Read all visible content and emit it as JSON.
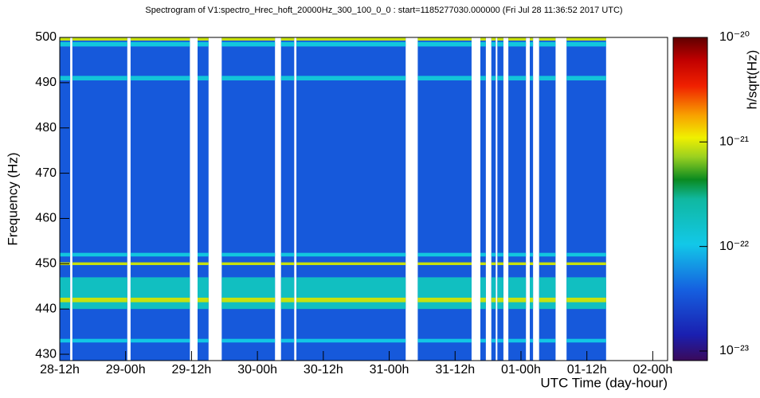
{
  "chart_data": {
    "type": "spectrogram",
    "title": "Spectrogram of V1:spectro_Hrec_hoft_20000Hz_300_100_0_0 : start=1185277030.000000 (Fri Jul 28 11:36:52 2017 UTC)",
    "x_label": "UTC Time (day-hour)",
    "y_label": "Frequency (Hz)",
    "z_label": "h/sqrt(Hz)",
    "xlim": [
      0,
      110.7
    ],
    "xticks": [
      {
        "value": 0,
        "label": "28-12h"
      },
      {
        "value": 12,
        "label": "29-00h"
      },
      {
        "value": 24,
        "label": "29-12h"
      },
      {
        "value": 36,
        "label": "30-00h"
      },
      {
        "value": 48,
        "label": "30-12h"
      },
      {
        "value": 60,
        "label": "31-00h"
      },
      {
        "value": 72,
        "label": "31-12h"
      },
      {
        "value": 84,
        "label": "01-00h"
      },
      {
        "value": 96,
        "label": "01-12h"
      },
      {
        "value": 108,
        "label": "02-00h"
      }
    ],
    "ylim": [
      428.6,
      500
    ],
    "yticks": [
      430,
      440,
      450,
      460,
      470,
      480,
      490,
      500
    ],
    "zlim": [
      8.1e-24,
      1e-20
    ],
    "zlog": true,
    "zticks": [
      {
        "value": 1e-20,
        "label": "10⁻²⁰"
      },
      {
        "value": 1e-21,
        "label": "10⁻²¹"
      },
      {
        "value": 1e-22,
        "label": "10⁻²²"
      },
      {
        "value": 1e-23,
        "label": "10⁻²³"
      }
    ],
    "background": 3.5e-23,
    "segments": [
      [
        0,
        1.9
      ],
      [
        2.3,
        12.3
      ],
      [
        12.9,
        23.7
      ],
      [
        25.1,
        27.1
      ],
      [
        29.5,
        39.2
      ],
      [
        40.3,
        42.7
      ],
      [
        43.1,
        63.0
      ],
      [
        65.2,
        75.0
      ],
      [
        76.6,
        77.6
      ],
      [
        78.6,
        79.4
      ],
      [
        79.7,
        80.8
      ],
      [
        81.7,
        84.9
      ],
      [
        85.6,
        86.2
      ],
      [
        87.3,
        90.3
      ],
      [
        92.3,
        99.5
      ]
    ],
    "lines": [
      {
        "freq": 443.5,
        "width": 7,
        "level": 1.8e-22
      },
      {
        "freq": 442,
        "width": 1,
        "level": 9e-22
      },
      {
        "freq": 450,
        "width": 0.6,
        "level": 9e-22
      },
      {
        "freq": 452,
        "width": 0.8,
        "level": 1.2e-22
      },
      {
        "freq": 433,
        "width": 0.8,
        "level": 1.1e-22
      },
      {
        "freq": 499.6,
        "width": 0.6,
        "level": 9e-22
      },
      {
        "freq": 498.5,
        "width": 1,
        "level": 1.2e-22
      },
      {
        "freq": 491,
        "width": 1,
        "level": 1.3e-22
      }
    ]
  }
}
